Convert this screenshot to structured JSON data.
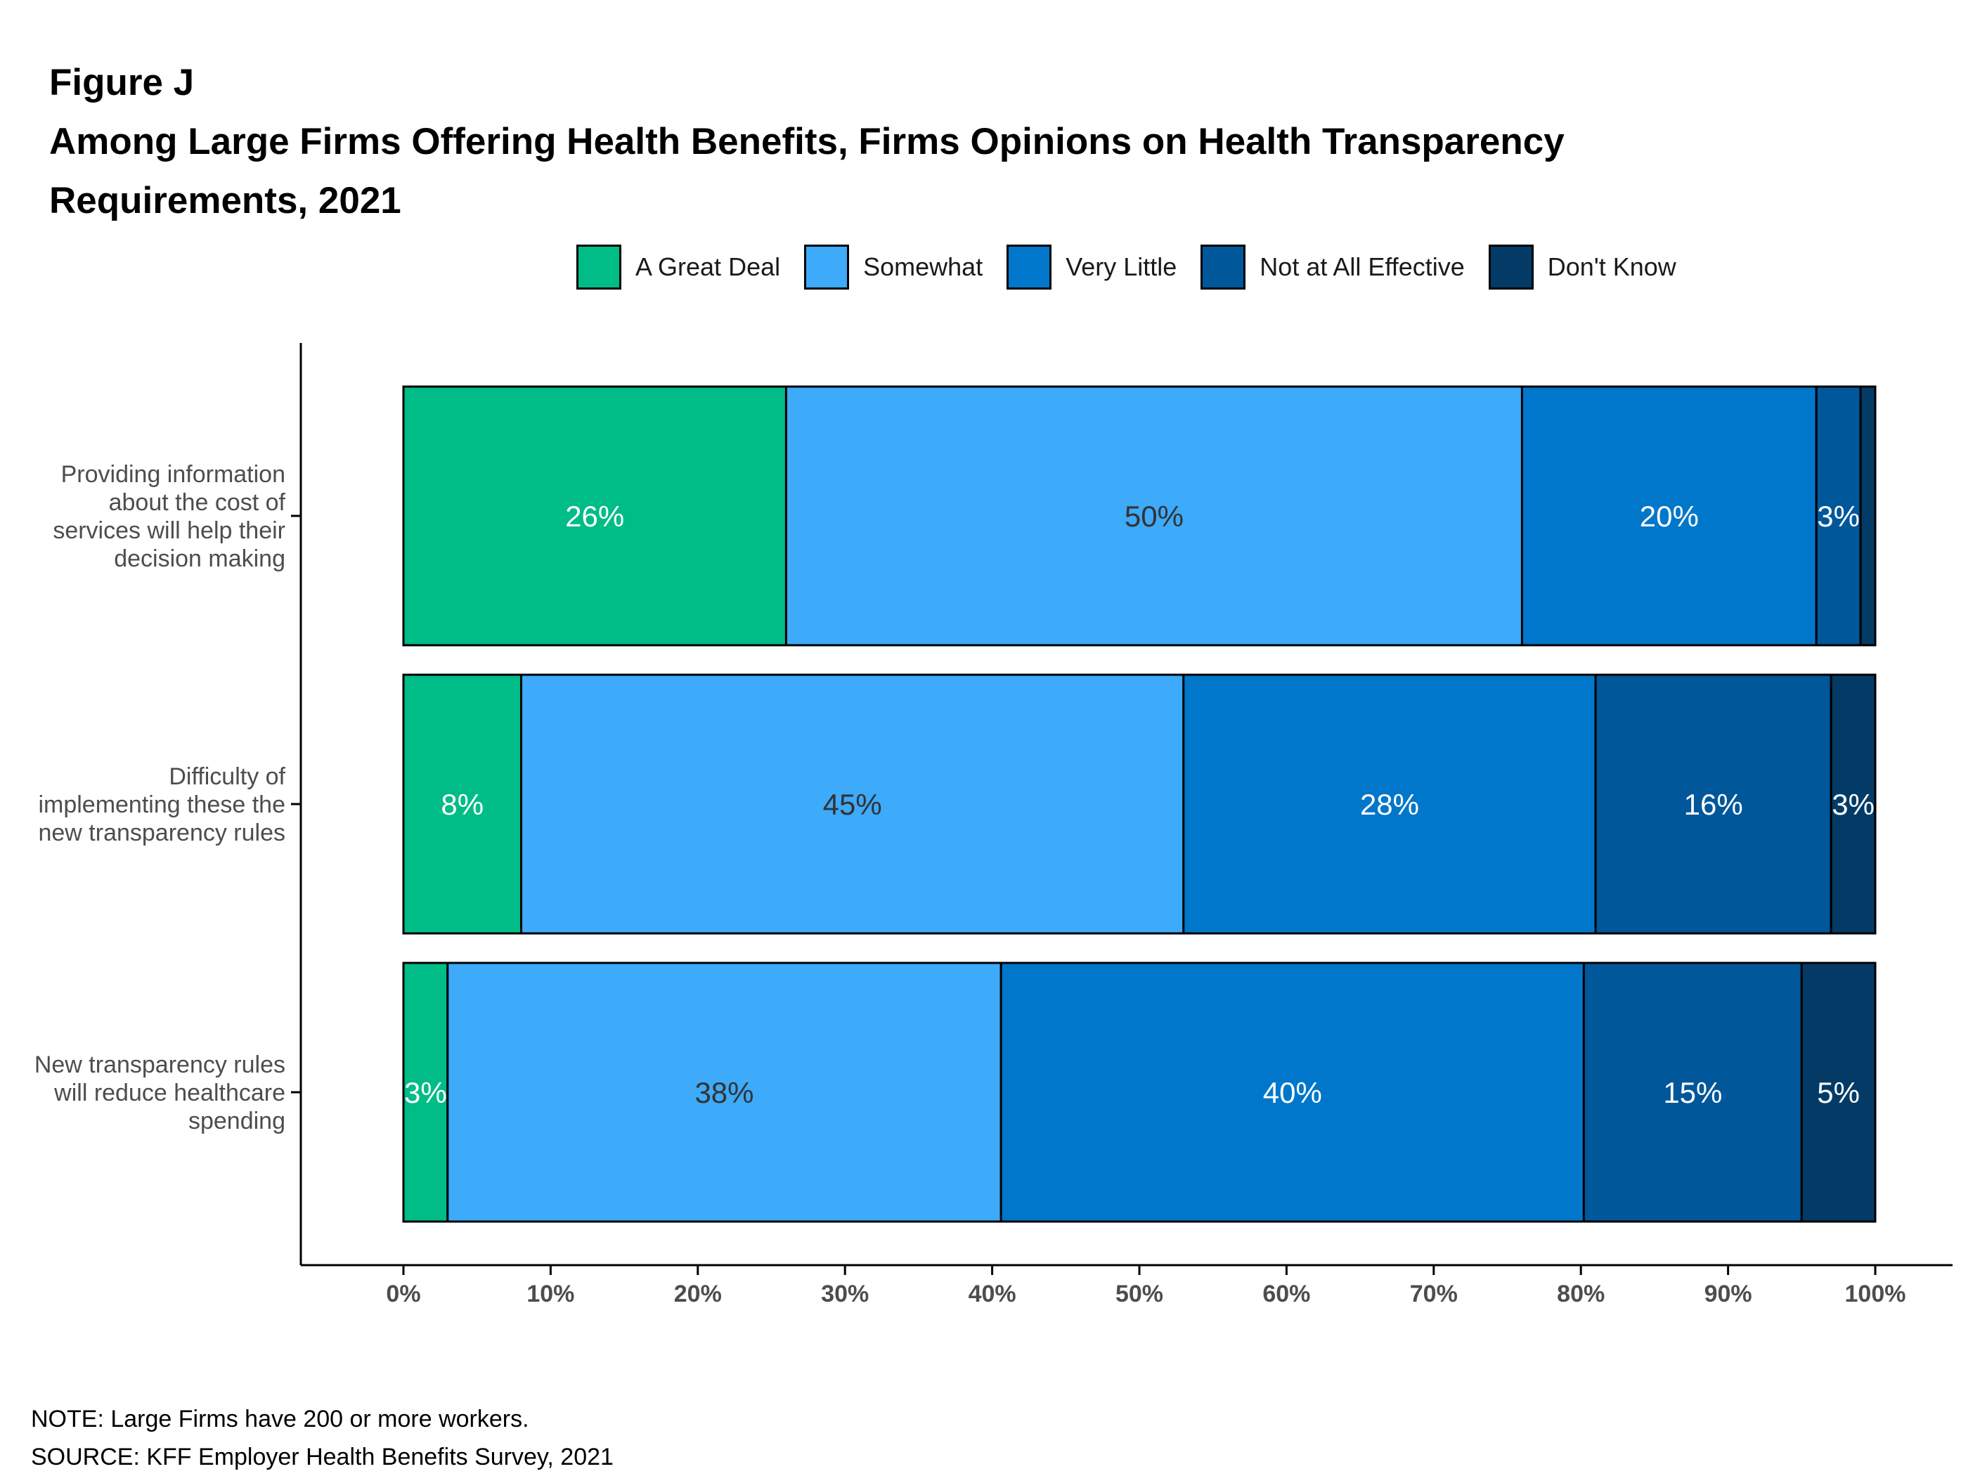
{
  "figure_label": "Figure J",
  "title": "Among Large Firms Offering Health Benefits, Firms Opinions on Health Transparency Requirements, 2021",
  "note": "NOTE: Large Firms have 200 or more workers.",
  "source": "SOURCE: KFF Employer Health Benefits Survey, 2021",
  "chart_data": {
    "type": "bar",
    "orientation": "horizontal",
    "stacked": true,
    "title": "Among Large Firms Offering Health Benefits, Firms Opinions on Health Transparency Requirements, 2021",
    "xlim": [
      0,
      100
    ],
    "x_ticks": [
      "0%",
      "10%",
      "20%",
      "30%",
      "40%",
      "50%",
      "60%",
      "70%",
      "80%",
      "90%",
      "100%"
    ],
    "legend_position": "top",
    "categories": [
      [
        "Providing information",
        "about the cost of",
        "services will help their",
        "decision making"
      ],
      [
        "Difficulty of",
        "implementing these the",
        "new transparency rules"
      ],
      [
        "New transparency rules",
        "will reduce healthcare",
        "spending"
      ]
    ],
    "series": [
      {
        "name": "A Great Deal",
        "color": "#00BC87",
        "label_color": "#ffffff",
        "values": [
          26,
          8,
          3
        ],
        "labels": [
          "26%",
          "8%",
          "3%"
        ]
      },
      {
        "name": "Somewhat",
        "color": "#3DAAFA",
        "label_color": "#333333",
        "values": [
          50,
          45,
          37.6
        ],
        "labels": [
          "50%",
          "45%",
          "38%"
        ]
      },
      {
        "name": "Very Little",
        "color": "#0077CA",
        "label_color": "#ffffff",
        "values": [
          20,
          28,
          39.6
        ],
        "labels": [
          "20%",
          "28%",
          "40%"
        ]
      },
      {
        "name": "Not at All Effective",
        "color": "#00579A",
        "label_color": "#ffffff",
        "values": [
          3,
          16,
          14.8
        ],
        "labels": [
          "3%",
          "16%",
          "15%"
        ]
      },
      {
        "name": "Don't Know",
        "color": "#033B66",
        "label_color": "#ffffff",
        "values": [
          1,
          3,
          5
        ],
        "labels": [
          "",
          "3%",
          "5%"
        ]
      }
    ]
  }
}
